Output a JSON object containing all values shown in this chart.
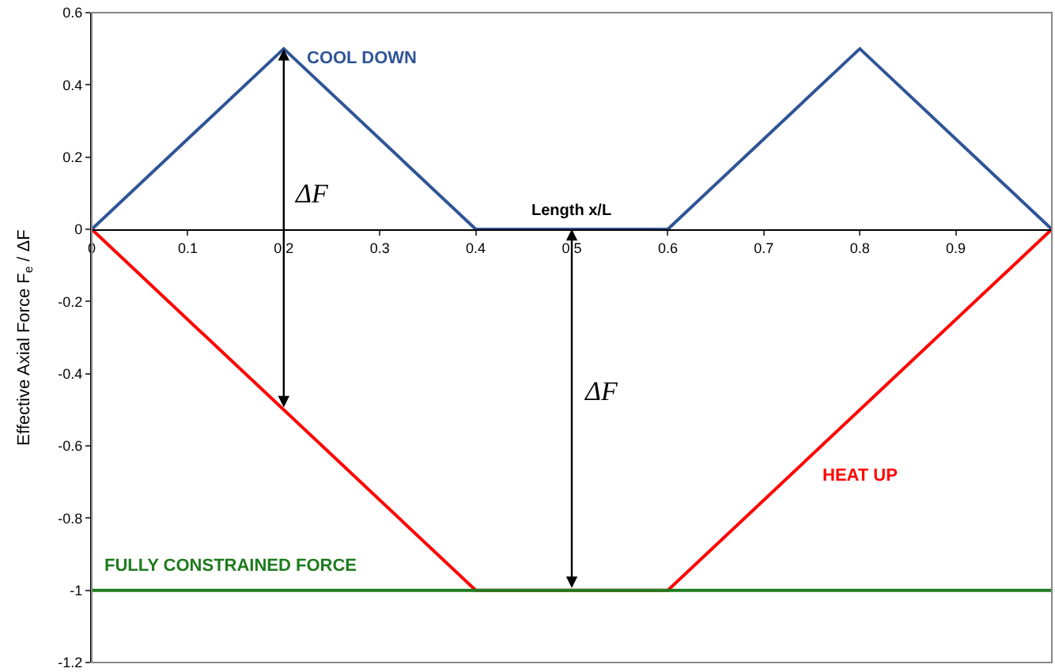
{
  "chart_data": {
    "type": "line",
    "xlabel": "Length x/L",
    "ylabel": "Effective Axial Force F$_{e}$ / ΔF",
    "series": [
      {
        "name": "COOL DOWN",
        "color": "#2f5597",
        "x": [
          0,
          0.2,
          0.4,
          0.6,
          0.8,
          1
        ],
        "values": [
          0,
          0.5,
          0,
          0,
          0.5,
          0
        ]
      },
      {
        "name": "HEAT UP",
        "color": "#ff0000",
        "x": [
          0,
          0.4,
          0.6,
          1
        ],
        "values": [
          0,
          -1,
          -1,
          0
        ]
      },
      {
        "name": "FULLY CONSTRAINED FORCE",
        "color": "#1e7b1e",
        "x": [
          0,
          1
        ],
        "values": [
          -1,
          -1
        ]
      }
    ],
    "annotations": [
      "ΔF",
      "ΔF"
    ],
    "xlim": [
      0,
      1
    ],
    "xticks": [
      0,
      0.1,
      0.2,
      0.3,
      0.4,
      0.5,
      0.6,
      0.7,
      0.8,
      0.9
    ],
    "ylim": [
      -1.2,
      0.6
    ],
    "yticks": [
      0.6,
      0.4,
      0.2,
      0,
      -0.2,
      -0.4,
      -0.6,
      -0.8,
      -1,
      -1.2
    ],
    "legend": false,
    "marker": "none",
    "line_style": "solid"
  }
}
